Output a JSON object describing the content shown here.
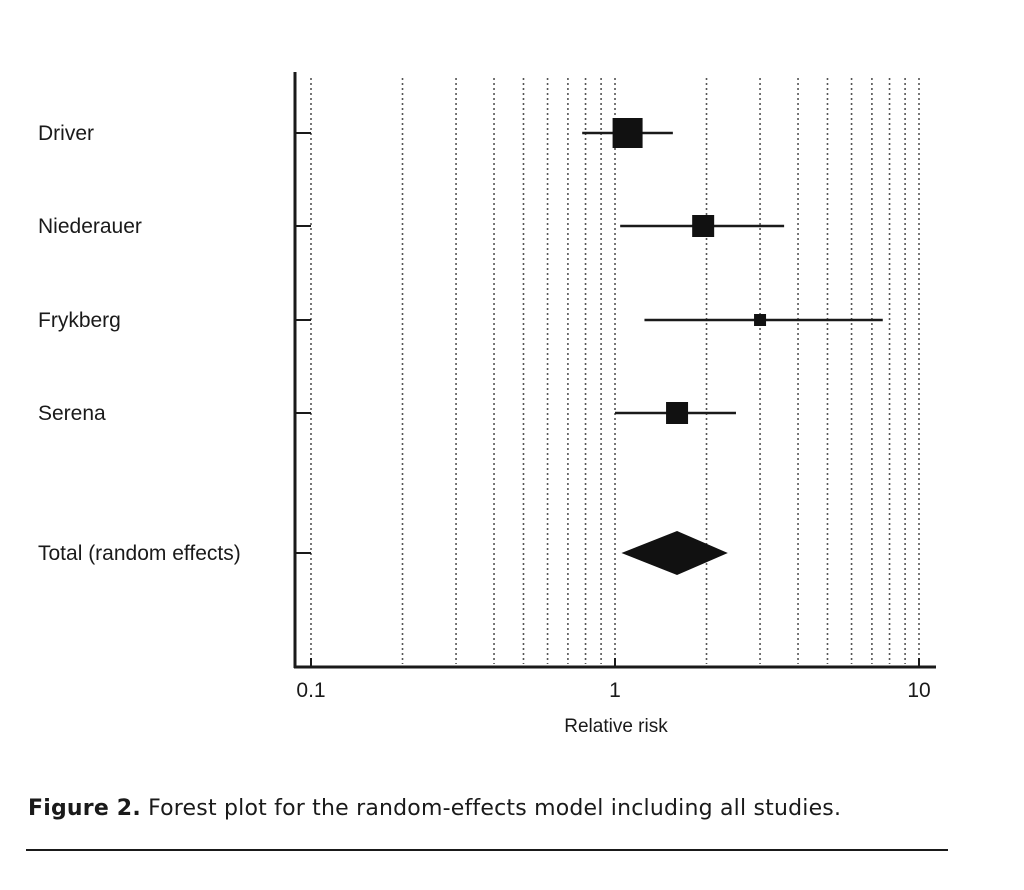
{
  "chart_data": {
    "type": "forest",
    "xlabel": "Relative risk",
    "x_scale": "log",
    "xlim": [
      0.1,
      10
    ],
    "x_ticks": [
      {
        "value": 0.1,
        "label": "0.1"
      },
      {
        "value": 1,
        "label": "1"
      },
      {
        "value": 10,
        "label": "10"
      }
    ],
    "grid": true,
    "studies": [
      {
        "name": "Driver",
        "estimate": 1.1,
        "ci": [
          0.78,
          1.55
        ],
        "weight": "large"
      },
      {
        "name": "Niederauer",
        "estimate": 1.95,
        "ci": [
          1.04,
          3.6
        ],
        "weight": "medium"
      },
      {
        "name": "Frykberg",
        "estimate": 3.0,
        "ci": [
          1.25,
          7.6
        ],
        "weight": "small"
      },
      {
        "name": "Serena",
        "estimate": 1.6,
        "ci": [
          1.0,
          2.5
        ],
        "weight": "medium"
      }
    ],
    "pooled": {
      "name": "Total (random effects)",
      "estimate": 1.6,
      "ci": [
        1.05,
        2.35
      ]
    }
  },
  "caption": {
    "label": "Figure 2.",
    "text": " Forest plot for the random-effects model including all studies."
  }
}
